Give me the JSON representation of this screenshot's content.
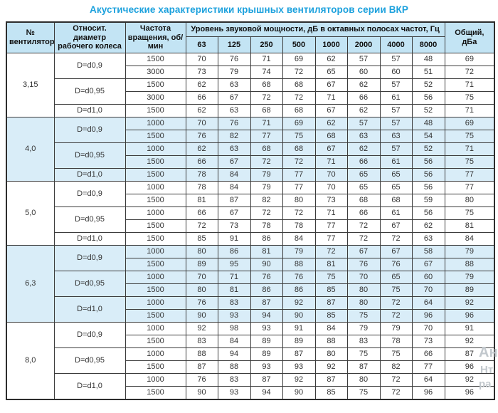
{
  "title": "Акустические характеристики крышных вентиляторов серии ВКР",
  "colors": {
    "title_accent": "#1ca1dd",
    "header_bg": "#c3e4f4",
    "shaded_row_bg": "#d9edf8",
    "plain_row_bg": "#ffffff",
    "border": "#3c3c3c"
  },
  "watermark": {
    "lines": [
      "Ан",
      "Нт",
      "ра"
    ]
  },
  "table": {
    "headers": {
      "fan_no": "№ вентилятора",
      "diameter": "Относит. диаметр рабочего колеса",
      "speed": "Частота вращения, об/мин",
      "spl_group": "Уровень звуковой мощности, дБ в октавных полосах частот, Гц",
      "freq_bands": [
        "63",
        "125",
        "250",
        "500",
        "1000",
        "2000",
        "4000",
        "8000"
      ],
      "total": "Общий, дБа"
    },
    "groups": [
      {
        "fan": "3,15",
        "shaded": false,
        "subgroups": [
          {
            "diameter": "D=d0,9",
            "rows": [
              {
                "speed": "1500",
                "levels": [
                  70,
                  76,
                  71,
                  69,
                  62,
                  57,
                  57,
                  48
                ],
                "total": 69
              },
              {
                "speed": "3000",
                "levels": [
                  73,
                  79,
                  74,
                  72,
                  65,
                  60,
                  60,
                  51
                ],
                "total": 72
              }
            ]
          },
          {
            "diameter": "D=d0,95",
            "rows": [
              {
                "speed": "1500",
                "levels": [
                  62,
                  63,
                  68,
                  68,
                  67,
                  62,
                  57,
                  52
                ],
                "total": 71
              },
              {
                "speed": "3000",
                "levels": [
                  66,
                  67,
                  72,
                  72,
                  71,
                  66,
                  61,
                  56
                ],
                "total": 75
              }
            ]
          },
          {
            "diameter": "D=d1,0",
            "rows": [
              {
                "speed": "1500",
                "levels": [
                  62,
                  63,
                  68,
                  68,
                  67,
                  62,
                  57,
                  52
                ],
                "total": 71
              }
            ]
          }
        ]
      },
      {
        "fan": "4,0",
        "shaded": true,
        "subgroups": [
          {
            "diameter": "D=d0,9",
            "rows": [
              {
                "speed": "1000",
                "levels": [
                  70,
                  76,
                  71,
                  69,
                  62,
                  57,
                  57,
                  48
                ],
                "total": 69
              },
              {
                "speed": "1500",
                "levels": [
                  76,
                  82,
                  77,
                  75,
                  68,
                  63,
                  63,
                  54
                ],
                "total": 75
              }
            ]
          },
          {
            "diameter": "D=d0,95",
            "rows": [
              {
                "speed": "1000",
                "levels": [
                  62,
                  63,
                  68,
                  68,
                  67,
                  62,
                  57,
                  52
                ],
                "total": 71
              },
              {
                "speed": "1500",
                "levels": [
                  66,
                  67,
                  72,
                  72,
                  71,
                  66,
                  61,
                  56
                ],
                "total": 75
              }
            ]
          },
          {
            "diameter": "D=d1,0",
            "rows": [
              {
                "speed": "1500",
                "levels": [
                  78,
                  84,
                  79,
                  77,
                  70,
                  65,
                  65,
                  56
                ],
                "total": 77
              }
            ]
          }
        ]
      },
      {
        "fan": "5,0",
        "shaded": false,
        "subgroups": [
          {
            "diameter": "D=d0,9",
            "rows": [
              {
                "speed": "1000",
                "levels": [
                  78,
                  84,
                  79,
                  77,
                  70,
                  65,
                  65,
                  56
                ],
                "total": 77
              },
              {
                "speed": "1500",
                "levels": [
                  81,
                  87,
                  82,
                  80,
                  73,
                  68,
                  68,
                  59
                ],
                "total": 80
              }
            ]
          },
          {
            "diameter": "D=d0,95",
            "rows": [
              {
                "speed": "1000",
                "levels": [
                  66,
                  67,
                  72,
                  72,
                  71,
                  66,
                  61,
                  56
                ],
                "total": 75
              },
              {
                "speed": "1500",
                "levels": [
                  72,
                  73,
                  78,
                  78,
                  77,
                  72,
                  67,
                  62
                ],
                "total": 81
              }
            ]
          },
          {
            "diameter": "D=d1,0",
            "rows": [
              {
                "speed": "1500",
                "levels": [
                  85,
                  91,
                  86,
                  84,
                  77,
                  72,
                  72,
                  63
                ],
                "total": 84
              }
            ]
          }
        ]
      },
      {
        "fan": "6,3",
        "shaded": true,
        "subgroups": [
          {
            "diameter": "D=d0,9",
            "rows": [
              {
                "speed": "1000",
                "levels": [
                  80,
                  86,
                  81,
                  79,
                  72,
                  67,
                  67,
                  58
                ],
                "total": 79
              },
              {
                "speed": "1500",
                "levels": [
                  89,
                  95,
                  90,
                  88,
                  81,
                  76,
                  76,
                  67
                ],
                "total": 88
              }
            ]
          },
          {
            "diameter": "D=d0,95",
            "rows": [
              {
                "speed": "1000",
                "levels": [
                  70,
                  71,
                  76,
                  76,
                  75,
                  70,
                  65,
                  60
                ],
                "total": 79
              },
              {
                "speed": "1500",
                "levels": [
                  80,
                  81,
                  86,
                  86,
                  85,
                  80,
                  75,
                  70
                ],
                "total": 89
              }
            ]
          },
          {
            "diameter": "D=d1,0",
            "rows": [
              {
                "speed": "1000",
                "levels": [
                  76,
                  83,
                  87,
                  92,
                  87,
                  80,
                  72,
                  64
                ],
                "total": 92
              },
              {
                "speed": "1500",
                "levels": [
                  90,
                  93,
                  94,
                  90,
                  85,
                  75,
                  72,
                  96
                ],
                "total": 96
              }
            ]
          }
        ]
      },
      {
        "fan": "8,0",
        "shaded": false,
        "subgroups": [
          {
            "diameter": "D=d0,9",
            "rows": [
              {
                "speed": "1000",
                "levels": [
                  92,
                  98,
                  93,
                  91,
                  84,
                  79,
                  79,
                  70
                ],
                "total": 91
              },
              {
                "speed": "1500",
                "levels": [
                  83,
                  84,
                  89,
                  89,
                  88,
                  83,
                  78,
                  73
                ],
                "total": 92
              }
            ]
          },
          {
            "diameter": "D=d0,95",
            "rows": [
              {
                "speed": "1000",
                "levels": [
                  88,
                  94,
                  89,
                  87,
                  80,
                  75,
                  75,
                  66
                ],
                "total": 87
              },
              {
                "speed": "1500",
                "levels": [
                  87,
                  88,
                  93,
                  93,
                  92,
                  87,
                  82,
                  77
                ],
                "total": 96
              }
            ]
          },
          {
            "diameter": "D=d1,0",
            "rows": [
              {
                "speed": "1000",
                "levels": [
                  76,
                  83,
                  87,
                  92,
                  87,
                  80,
                  72,
                  64
                ],
                "total": 92
              },
              {
                "speed": "1500",
                "levels": [
                  90,
                  93,
                  94,
                  90,
                  85,
                  75,
                  72,
                  96
                ],
                "total": 96
              }
            ]
          }
        ]
      }
    ]
  }
}
